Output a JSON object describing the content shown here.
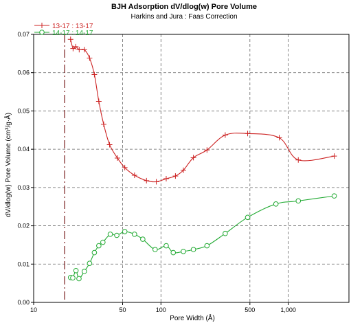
{
  "chart_data": {
    "type": "line",
    "title": "BJH Adsorption dV/dlog(w) Pore Volume",
    "subtitle": "Harkins and Jura : Faas Correction",
    "xlabel": "Pore Width (Å)",
    "ylabel": "dV/dlog(w) Pore Volume (cm³/g·Å)",
    "x_scale": "log",
    "xlim": [
      10,
      3000
    ],
    "ylim": [
      0,
      0.07
    ],
    "x_ticks": [
      {
        "value": 10,
        "label": "10"
      },
      {
        "value": 50,
        "label": "50"
      },
      {
        "value": 100,
        "label": "100"
      },
      {
        "value": 500,
        "label": "500"
      },
      {
        "value": 1000,
        "label": "1,000"
      }
    ],
    "y_ticks": [
      {
        "value": 0,
        "label": "0.00"
      },
      {
        "value": 0.01,
        "label": "0.01"
      },
      {
        "value": 0.02,
        "label": "0.02"
      },
      {
        "value": 0.03,
        "label": "0.03"
      },
      {
        "value": 0.04,
        "label": "0.04"
      },
      {
        "value": 0.05,
        "label": "0.05"
      },
      {
        "value": 0.06,
        "label": "0.06"
      },
      {
        "value": 0.07,
        "label": "0.07"
      }
    ],
    "grid": true,
    "legend_position": "top-left",
    "reference_line_x": 17.5,
    "series": [
      {
        "name": "13-17 : 13-17",
        "color": "#cc2222",
        "marker": "plus",
        "points": [
          [
            19.5,
            0.0687
          ],
          [
            20.4,
            0.0663
          ],
          [
            21.4,
            0.0668
          ],
          [
            22.8,
            0.066
          ],
          [
            25.0,
            0.066
          ],
          [
            27.5,
            0.0638
          ],
          [
            30.0,
            0.0595
          ],
          [
            32.5,
            0.0525
          ],
          [
            35.5,
            0.0465
          ],
          [
            39.5,
            0.0412
          ],
          [
            45.5,
            0.0377
          ],
          [
            52.0,
            0.0352
          ],
          [
            62.0,
            0.0332
          ],
          [
            77.0,
            0.0318
          ],
          [
            92.0,
            0.0315
          ],
          [
            110.0,
            0.0323
          ],
          [
            130.0,
            0.033
          ],
          [
            150.0,
            0.0345
          ],
          [
            180.0,
            0.0378
          ],
          [
            230.0,
            0.0398
          ],
          [
            320.0,
            0.0437
          ],
          [
            480.0,
            0.0441
          ],
          [
            850.0,
            0.043
          ],
          [
            1200.0,
            0.0372
          ],
          [
            2300.0,
            0.0382
          ]
        ]
      },
      {
        "name": "14-17 : 14-17",
        "color": "#22aa33",
        "marker": "circle",
        "points": [
          [
            19.5,
            0.0065
          ],
          [
            20.3,
            0.0064
          ],
          [
            21.5,
            0.0083
          ],
          [
            22.7,
            0.0062
          ],
          [
            25.0,
            0.0081
          ],
          [
            27.5,
            0.0102
          ],
          [
            30.0,
            0.013
          ],
          [
            32.5,
            0.0148
          ],
          [
            35.0,
            0.0157
          ],
          [
            40.0,
            0.0178
          ],
          [
            45.0,
            0.0175
          ],
          [
            52.0,
            0.0185
          ],
          [
            62.0,
            0.0178
          ],
          [
            72.0,
            0.0165
          ],
          [
            90.0,
            0.0138
          ],
          [
            110.0,
            0.0148
          ],
          [
            125.0,
            0.013
          ],
          [
            150.0,
            0.0133
          ],
          [
            180.0,
            0.0138
          ],
          [
            230.0,
            0.0148
          ],
          [
            320.0,
            0.018
          ],
          [
            480.0,
            0.0222
          ],
          [
            800.0,
            0.0257
          ],
          [
            1200.0,
            0.0265
          ],
          [
            2300.0,
            0.0278
          ]
        ]
      }
    ]
  }
}
